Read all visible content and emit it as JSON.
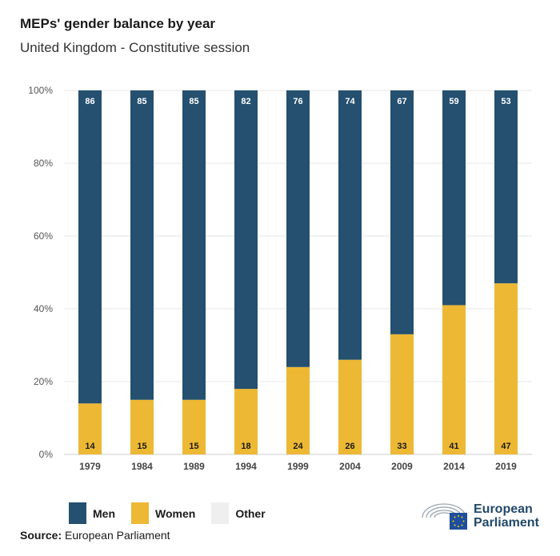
{
  "header": {
    "title": "MEPs' gender balance by year",
    "subtitle": "United Kingdom - Constitutive session"
  },
  "chart_data": {
    "type": "bar",
    "stacked": true,
    "categories": [
      "1979",
      "1984",
      "1989",
      "1994",
      "1999",
      "2004",
      "2009",
      "2014",
      "2019"
    ],
    "series": [
      {
        "name": "Men",
        "values": [
          86,
          85,
          85,
          82,
          76,
          74,
          67,
          59,
          53
        ],
        "color": "#25506f"
      },
      {
        "name": "Women",
        "values": [
          14,
          15,
          15,
          18,
          24,
          26,
          33,
          41,
          47
        ],
        "color": "#edb833"
      },
      {
        "name": "Other",
        "values": [
          0,
          0,
          0,
          0,
          0,
          0,
          0,
          0,
          0
        ],
        "color": "#efefef"
      }
    ],
    "ylim": [
      0,
      100
    ],
    "yticks": [
      "0%",
      "20%",
      "40%",
      "60%",
      "80%",
      "100%"
    ],
    "grid": true,
    "legend_position": "bottom-left"
  },
  "legend": {
    "items": [
      {
        "label": "Men",
        "color": "#25506f"
      },
      {
        "label": "Women",
        "color": "#edb833"
      },
      {
        "label": "Other",
        "color": "#efefef"
      }
    ]
  },
  "source": {
    "label": "Source:",
    "text": "European Parliament"
  },
  "logo": {
    "line1": "European",
    "line2": "Parliament",
    "icon": "european-parliament-hemicycle-icon"
  }
}
